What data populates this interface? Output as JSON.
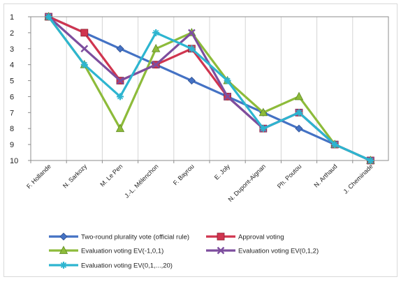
{
  "chart_data": {
    "type": "line",
    "title": "",
    "xlabel": "",
    "ylabel": "",
    "y_axis_reversed": true,
    "ylim": [
      1,
      10
    ],
    "y_ticks": [
      "1",
      "2",
      "3",
      "4",
      "5",
      "6",
      "7",
      "8",
      "9",
      "10"
    ],
    "grid": "vertical",
    "legend_position": "bottom",
    "categories": [
      "F. Hollande",
      "N. Sarkozy",
      "M. Le Pen",
      "J.-L. Mélenchon",
      "F. Bayrou",
      "E. Joly",
      "N. Dupont-Aignan",
      "Ph. Poutou",
      "N. Arthaud",
      "J. Cheminade"
    ],
    "series": [
      {
        "name": "Two-round plurality vote (official rule)",
        "color": "#4472C4",
        "marker": "diamond",
        "values": [
          1,
          2,
          3,
          4,
          5,
          6,
          7,
          8,
          9,
          10
        ]
      },
      {
        "name": "Approval voting",
        "color": "#D0354F",
        "marker": "square",
        "values": [
          1,
          2,
          5,
          4,
          3,
          6,
          8,
          7,
          9,
          10
        ]
      },
      {
        "name": "Evaluation voting EV(-1,0,1)",
        "color": "#8DBB3A",
        "marker": "triangle",
        "values": [
          1,
          4,
          8,
          3,
          2,
          5,
          7,
          6,
          9,
          10
        ]
      },
      {
        "name": "Evaluation voting EV(0,1,2)",
        "color": "#7D4E9E",
        "marker": "x",
        "values": [
          1,
          3,
          5,
          4,
          2,
          6,
          8,
          7,
          9,
          10
        ]
      },
      {
        "name": "Evaluation voting EV(0,1,...,20)",
        "color": "#2DB5D0",
        "marker": "star",
        "values": [
          1,
          4,
          6,
          2,
          3,
          5,
          8,
          7,
          9,
          10
        ]
      }
    ]
  }
}
